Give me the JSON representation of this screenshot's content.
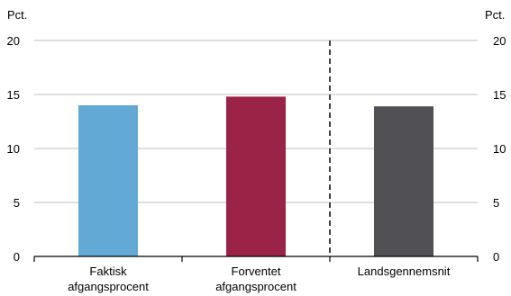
{
  "chart_data": {
    "type": "bar",
    "unit_left": "Pct.",
    "unit_right": "Pct.",
    "categories": [
      [
        "Faktisk",
        "afgangsprocent"
      ],
      [
        "Forventet",
        "afgangsprocent"
      ],
      [
        "Landsgennemsnit"
      ]
    ],
    "values": [
      14.0,
      14.8,
      13.9
    ],
    "colors": [
      "#63a9d6",
      "#9b2348",
      "#515155"
    ],
    "ylim": [
      0,
      20
    ],
    "yticks": [
      0,
      5,
      10,
      15,
      20
    ],
    "grid": true,
    "separator_after_category": 1
  }
}
